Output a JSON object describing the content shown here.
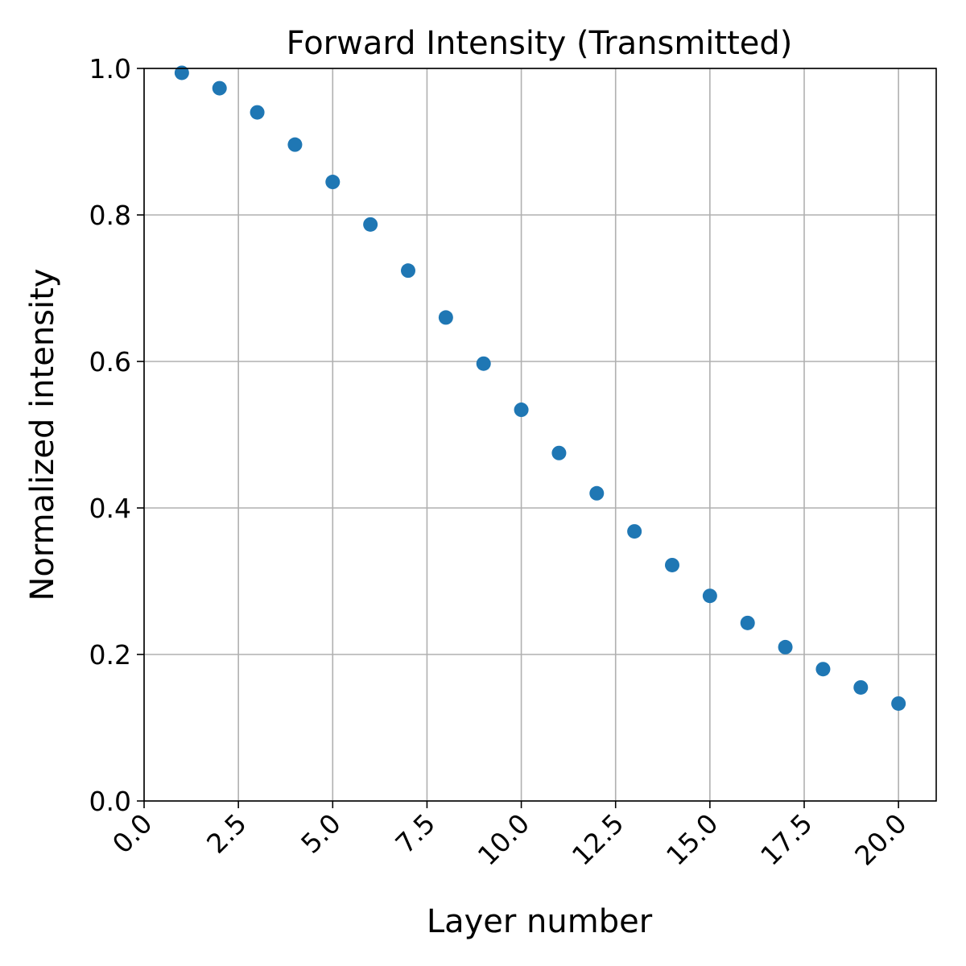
{
  "chart_data": {
    "type": "scatter",
    "title": "Forward Intensity (Transmitted)",
    "xlabel": "Layer number",
    "ylabel": "Normalized intensity",
    "xlim": [
      0,
      21
    ],
    "ylim": [
      0,
      1
    ],
    "x_ticks": [
      "0.0",
      "2.5",
      "5.0",
      "7.5",
      "10.0",
      "12.5",
      "15.0",
      "17.5",
      "20.0"
    ],
    "y_ticks": [
      "0.0",
      "0.2",
      "0.4",
      "0.6",
      "0.8",
      "1.0"
    ],
    "grid": true,
    "marker_color": "#1f77b4",
    "series": [
      {
        "x": [
          1,
          2,
          3,
          4,
          5,
          6,
          7,
          8,
          9,
          10,
          11,
          12,
          13,
          14,
          15,
          16,
          17,
          18,
          19,
          20
        ],
        "y": [
          0.994,
          0.973,
          0.94,
          0.896,
          0.845,
          0.787,
          0.724,
          0.66,
          0.597,
          0.534,
          0.475,
          0.42,
          0.368,
          0.322,
          0.28,
          0.243,
          0.21,
          0.18,
          0.155,
          0.133
        ]
      }
    ]
  }
}
